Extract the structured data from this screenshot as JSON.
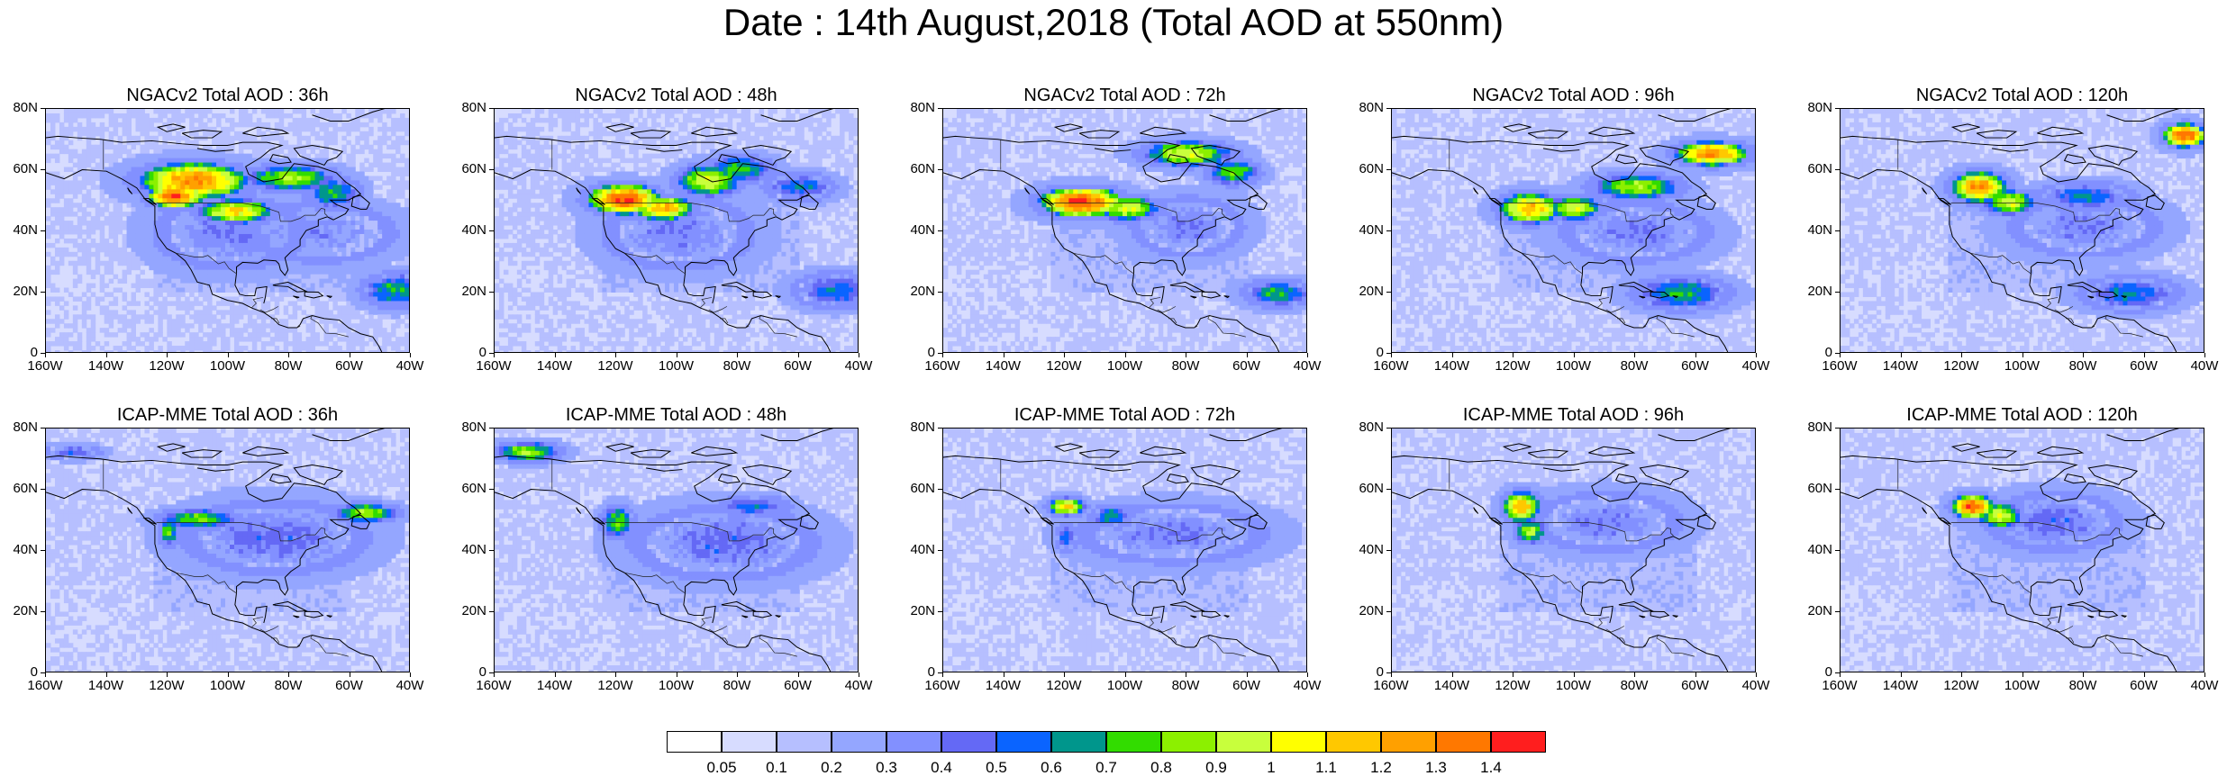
{
  "title": "Date : 14th August,2018 (Total AOD at 550nm)",
  "panels": [
    {
      "title": "NGACv2 Total AOD : 36h",
      "model": "NGACv2",
      "forecast_hour": 36
    },
    {
      "title": "NGACv2 Total AOD : 48h",
      "model": "NGACv2",
      "forecast_hour": 48
    },
    {
      "title": "NGACv2 Total AOD : 72h",
      "model": "NGACv2",
      "forecast_hour": 72
    },
    {
      "title": "NGACv2 Total AOD : 96h",
      "model": "NGACv2",
      "forecast_hour": 96
    },
    {
      "title": "NGACv2 Total AOD : 120h",
      "model": "NGACv2",
      "forecast_hour": 120
    },
    {
      "title": "ICAP-MME Total AOD : 36h",
      "model": "ICAP-MME",
      "forecast_hour": 36
    },
    {
      "title": "ICAP-MME Total AOD : 48h",
      "model": "ICAP-MME",
      "forecast_hour": 48
    },
    {
      "title": "ICAP-MME Total AOD : 72h",
      "model": "ICAP-MME",
      "forecast_hour": 72
    },
    {
      "title": "ICAP-MME Total AOD : 96h",
      "model": "ICAP-MME",
      "forecast_hour": 96
    },
    {
      "title": "ICAP-MME Total AOD : 120h",
      "model": "ICAP-MME",
      "forecast_hour": 120
    }
  ],
  "axes": {
    "lat_labels": [
      "80N",
      "60N",
      "40N",
      "20N",
      "0"
    ],
    "lat_values": [
      80,
      60,
      40,
      20,
      0
    ],
    "lon_labels": [
      "160W",
      "140W",
      "120W",
      "100W",
      "80W",
      "60W",
      "40W"
    ],
    "lon_values": [
      -160,
      -140,
      -120,
      -100,
      -80,
      -60,
      -40
    ]
  },
  "colorbar": {
    "labels": [
      "0.05",
      "0.1",
      "0.2",
      "0.3",
      "0.4",
      "0.5",
      "0.6",
      "0.7",
      "0.8",
      "0.9",
      "1",
      "1.1",
      "1.2",
      "1.3",
      "1.4"
    ],
    "colors": [
      "#ffffff",
      "#d7dcff",
      "#b6bfff",
      "#94a6ff",
      "#8290ff",
      "#6469f5",
      "#0a64ff",
      "#00968c",
      "#32dc00",
      "#8cf000",
      "#c8ff3c",
      "#ffff00",
      "#ffc800",
      "#ffa000",
      "#ff7800",
      "#ff1e1e"
    ]
  }
}
